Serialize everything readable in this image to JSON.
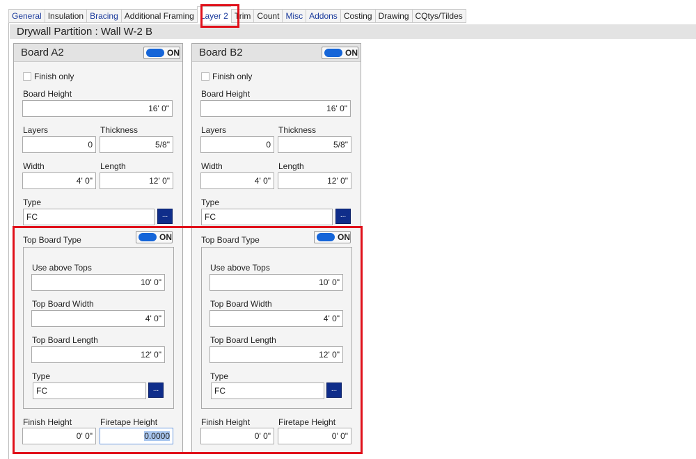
{
  "tabs": [
    {
      "label": "General",
      "blue": true
    },
    {
      "label": "Insulation"
    },
    {
      "label": "Bracing",
      "blue": true
    },
    {
      "label": "Additional Framing"
    },
    {
      "label": "Layer 2",
      "active": true
    },
    {
      "label": "Trim"
    },
    {
      "label": "Count"
    },
    {
      "label": "Misc",
      "blue": true
    },
    {
      "label": "Addons",
      "blue": true
    },
    {
      "label": "Costing"
    },
    {
      "label": "Drawing"
    },
    {
      "label": "CQtys/Tildes"
    }
  ],
  "title": "Drywall Partition : Wall W-2 B",
  "colors": {
    "highlight": "#e0101a",
    "toggle": "#1565d8",
    "button": "#0f2d8a"
  },
  "boards": [
    {
      "name": "Board A2",
      "toggle": "ON",
      "finish_only": "Finish only",
      "board_height_label": "Board Height",
      "board_height": "16' 0\"",
      "layers_label": "Layers",
      "layers": "0",
      "thickness_label": "Thickness",
      "thickness": "5/8\"",
      "width_label": "Width",
      "width": "4' 0\"",
      "length_label": "Length",
      "length": "12' 0\"",
      "type_label": "Type",
      "type": "FC",
      "browse": "...",
      "top": {
        "label": "Top Board Type",
        "toggle": "ON",
        "use_above_label": "Use above Tops",
        "use_above": "10' 0\"",
        "width_label": "Top Board Width",
        "width": "4' 0\"",
        "length_label": "Top Board Length",
        "length": "12' 0\"",
        "type_label": "Type",
        "type": "FC",
        "browse": "..."
      },
      "finish_height_label": "Finish Height",
      "finish_height": "0' 0\"",
      "firetape_label": "Firetape Height",
      "firetape": "0.0000"
    },
    {
      "name": "Board B2",
      "toggle": "ON",
      "finish_only": "Finish only",
      "board_height_label": "Board Height",
      "board_height": "16' 0\"",
      "layers_label": "Layers",
      "layers": "0",
      "thickness_label": "Thickness",
      "thickness": "5/8\"",
      "width_label": "Width",
      "width": "4' 0\"",
      "length_label": "Length",
      "length": "12' 0\"",
      "type_label": "Type",
      "type": "FC",
      "browse": "...",
      "top": {
        "label": "Top Board Type",
        "toggle": "ON",
        "use_above_label": "Use above Tops",
        "use_above": "10' 0\"",
        "width_label": "Top Board Width",
        "width": "4' 0\"",
        "length_label": "Top Board Length",
        "length": "12' 0\"",
        "type_label": "Type",
        "type": "FC",
        "browse": "..."
      },
      "finish_height_label": "Finish Height",
      "finish_height": "0' 0\"",
      "firetape_label": "Firetape Height",
      "firetape": "0' 0\""
    }
  ]
}
